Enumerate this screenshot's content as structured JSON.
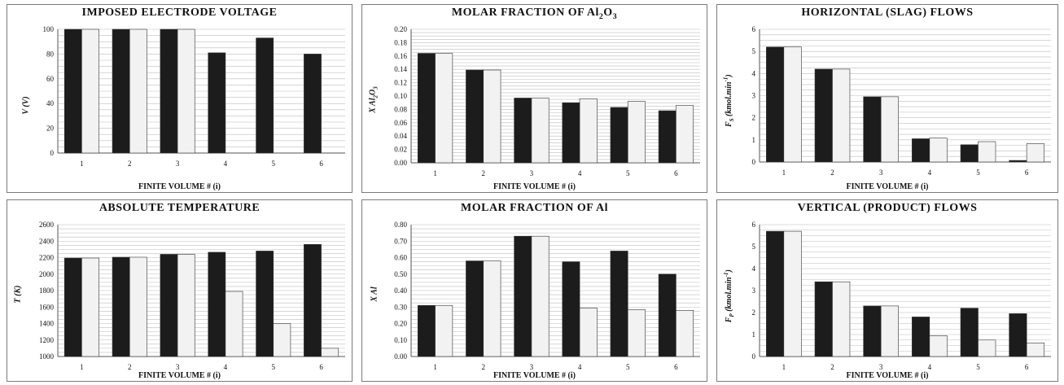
{
  "chart_data": [
    {
      "type": "bar",
      "title": "IMPOSED ELECTRODE VOLTAGE",
      "xlabel": "FINITE VOLUME # (i)",
      "ylabel": "V (V)",
      "categories": [
        "1",
        "2",
        "3",
        "4",
        "5",
        "6"
      ],
      "ylim": [
        0,
        100
      ],
      "yticks": [
        "0",
        "20",
        "40",
        "60",
        "80",
        "100"
      ],
      "series": [
        {
          "color": "#1c1c1c",
          "values": [
            100,
            100,
            100,
            81,
            93,
            80
          ]
        },
        {
          "color": "#f2f2f2",
          "values": [
            100,
            100,
            100,
            0,
            0,
            0
          ]
        }
      ],
      "grid": true
    },
    {
      "type": "bar",
      "title": "MOLAR FRACTION OF Al2O3",
      "title_main": "MOLAR FRACTION OF Al",
      "title_sub1": "2",
      "title_mid": "O",
      "title_sub2": "3",
      "xlabel": "FINITE VOLUME # (i)",
      "ylabel": "X Al2O3",
      "categories": [
        "1",
        "2",
        "3",
        "4",
        "5",
        "6"
      ],
      "ylim": [
        0,
        0.2
      ],
      "yticks": [
        "0.00",
        "0.02",
        "0.04",
        "0.06",
        "0.08",
        "0.10",
        "0.12",
        "0.14",
        "0.16",
        "0.18",
        "0.20"
      ],
      "series": [
        {
          "color": "#1c1c1c",
          "values": [
            0.164,
            0.139,
            0.097,
            0.09,
            0.083,
            0.078
          ]
        },
        {
          "color": "#f2f2f2",
          "values": [
            0.164,
            0.139,
            0.097,
            0.096,
            0.092,
            0.086
          ]
        }
      ],
      "grid": true
    },
    {
      "type": "bar",
      "title": "HORIZONTAL (SLAG) FLOWS",
      "xlabel": "FINITE VOLUME # (i)",
      "ylabel": "FS (kmol.min-1)",
      "categories": [
        "1",
        "2",
        "3",
        "4",
        "5",
        "6"
      ],
      "ylim": [
        0,
        6
      ],
      "yticks": [
        "0",
        "1",
        "2",
        "3",
        "4",
        "5",
        "6"
      ],
      "series": [
        {
          "color": "#1c1c1c",
          "values": [
            5.2,
            4.2,
            2.95,
            1.05,
            0.78,
            0.07
          ]
        },
        {
          "color": "#f2f2f2",
          "values": [
            5.2,
            4.2,
            2.95,
            1.08,
            0.92,
            0.83
          ]
        }
      ],
      "grid": true
    },
    {
      "type": "bar",
      "title": "ABSOLUTE TEMPERATURE",
      "xlabel": "FINITE VOLUME # (i)",
      "ylabel": "T (K)",
      "categories": [
        "1",
        "2",
        "3",
        "4",
        "5",
        "6"
      ],
      "ylim": [
        1000,
        2600
      ],
      "yticks": [
        "1000",
        "1200",
        "1400",
        "1600",
        "1800",
        "2000",
        "2200",
        "2400",
        "2600"
      ],
      "series": [
        {
          "color": "#1c1c1c",
          "values": [
            2195,
            2205,
            2240,
            2265,
            2280,
            2360
          ]
        },
        {
          "color": "#f2f2f2",
          "values": [
            2195,
            2205,
            2240,
            1790,
            1400,
            1100
          ]
        }
      ],
      "grid": true
    },
    {
      "type": "bar",
      "title": "MOLAR FRACTION OF Al",
      "xlabel": "FINITE VOLUME # (i)",
      "ylabel": "X Al",
      "categories": [
        "1",
        "2",
        "3",
        "4",
        "5",
        "6"
      ],
      "ylim": [
        0,
        0.8
      ],
      "yticks": [
        "0.00",
        "0.10",
        "0.20",
        "0.30",
        "0.40",
        "0.50",
        "0.60",
        "0.70",
        "0.80"
      ],
      "series": [
        {
          "color": "#1c1c1c",
          "values": [
            0.31,
            0.58,
            0.73,
            0.575,
            0.64,
            0.5
          ]
        },
        {
          "color": "#f2f2f2",
          "values": [
            0.31,
            0.58,
            0.73,
            0.295,
            0.285,
            0.28
          ]
        }
      ],
      "grid": true
    },
    {
      "type": "bar",
      "title": "VERTICAL (PRODUCT) FLOWS",
      "xlabel": "FINITE VOLUME # (i)",
      "ylabel": "FP (kmol.min-1)",
      "categories": [
        "1",
        "2",
        "3",
        "4",
        "5",
        "6"
      ],
      "ylim": [
        0,
        6
      ],
      "yticks": [
        "0",
        "1",
        "2",
        "3",
        "4",
        "5",
        "6"
      ],
      "series": [
        {
          "color": "#1c1c1c",
          "values": [
            5.7,
            3.4,
            2.3,
            1.8,
            2.2,
            1.95
          ]
        },
        {
          "color": "#f2f2f2",
          "values": [
            5.7,
            3.4,
            2.3,
            0.95,
            0.75,
            0.62
          ]
        }
      ],
      "grid": true
    }
  ]
}
